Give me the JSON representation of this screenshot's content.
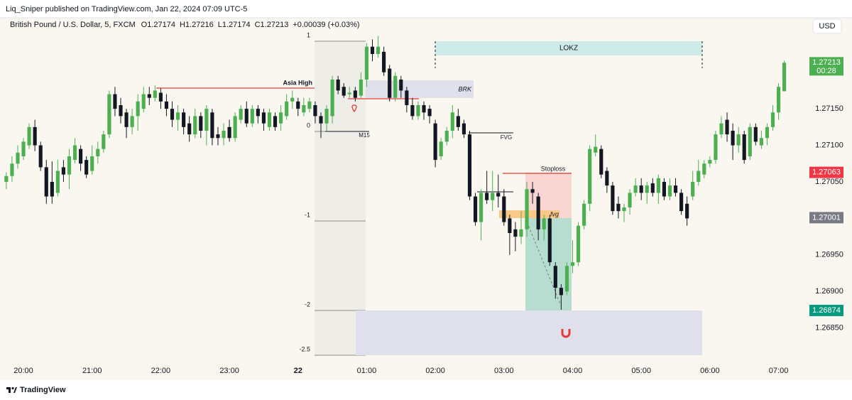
{
  "header": "Liq_Sniper published on TradingView.com, Jan 22, 2024 07:09 UTC-5",
  "footer": "TradingView",
  "chart_data": {
    "type": "candlestick",
    "legend": {
      "symbol": "British Pound / U.S. Dollar, 5, FXCM",
      "items": [
        "O1.27174",
        "H1.27216",
        "L1.27174",
        "C1.27213"
      ],
      "change": "+0.00039 (+0.03%)"
    },
    "currency": "USD",
    "up_color": "#4caf50",
    "down_color": "#131722",
    "open": [
      1.2705,
      1.27058,
      1.27075,
      1.27085,
      1.271,
      1.27125,
      1.271,
      1.2707,
      1.2705,
      1.27035,
      1.2707,
      1.2706,
      1.2708,
      1.27095,
      1.2708,
      1.27065,
      1.27085,
      1.27095,
      1.27115,
      1.2717,
      1.27155,
      1.27145,
      1.27125,
      1.2714,
      1.2715,
      1.2717,
      1.27165,
      1.27172,
      1.2716,
      1.2715,
      1.27135,
      1.27145,
      1.2713,
      1.27115,
      1.2714,
      1.2712,
      1.27145,
      1.27115,
      1.2711,
      1.27125,
      1.2711,
      1.27135,
      1.2715,
      1.2713,
      1.2715,
      1.27145,
      1.27125,
      1.2714,
      1.2713,
      1.2714,
      1.2716,
      1.2716,
      1.27145,
      1.2715,
      1.27155,
      1.2714,
      1.2713,
      1.2714,
      1.2719,
      1.2718,
      1.2717,
      1.27175,
      1.27168,
      1.2719,
      1.27235,
      1.27225,
      1.27228,
      1.27205,
      1.27165,
      1.2719,
      1.27175,
      1.27155,
      1.2714,
      1.27155,
      1.2715,
      1.2713,
      1.27085,
      1.27105,
      1.2712,
      1.2714,
      1.2713,
      1.27115,
      1.2703,
      1.26995,
      1.27035,
      1.27025,
      1.27035,
      1.2703,
      1.27,
      1.26985,
      1.26975,
      1.26985,
      1.2704,
      1.2703,
      1.26985,
      1.27,
      1.26935,
      1.26905,
      1.269,
      1.26935,
      1.2694,
      1.2699,
      1.2702,
      1.2709,
      1.27095,
      1.27065,
      1.27045,
      1.2702,
      1.2701,
      1.27015,
      1.27035,
      1.27045,
      1.27035,
      1.27048,
      1.27035,
      1.2705,
      1.2703,
      1.27045,
      1.27035,
      1.2702,
      1.2703,
      1.2705,
      1.2706,
      1.27075,
      1.2708,
      1.27115,
      1.27135,
      1.2712,
      1.271,
      1.27115,
      1.27085,
      1.27125,
      1.271,
      1.2711,
      1.27125,
      1.27145,
      1.27174
    ],
    "high": [
      1.27063,
      1.27085,
      1.271,
      1.2711,
      1.2713,
      1.27135,
      1.27105,
      1.2708,
      1.27078,
      1.2708,
      1.2708,
      1.27095,
      1.2711,
      1.271,
      1.27085,
      1.271,
      1.27105,
      1.2712,
      1.27175,
      1.2718,
      1.27165,
      1.2715,
      1.2715,
      1.2717,
      1.2718,
      1.2718,
      1.27182,
      1.27178,
      1.2717,
      1.2716,
      1.27155,
      1.2715,
      1.2714,
      1.2715,
      1.27145,
      1.27155,
      1.2715,
      1.27125,
      1.2713,
      1.27135,
      1.27145,
      1.27155,
      1.2716,
      1.27155,
      1.27155,
      1.2715,
      1.2715,
      1.27145,
      1.27155,
      1.2717,
      1.27175,
      1.27165,
      1.27165,
      1.27165,
      1.2716,
      1.27145,
      1.27155,
      1.27195,
      1.27195,
      1.27185,
      1.2718,
      1.2718,
      1.272,
      1.2724,
      1.27245,
      1.2725,
      1.27235,
      1.2721,
      1.272,
      1.27195,
      1.2718,
      1.27165,
      1.2716,
      1.2716,
      1.27155,
      1.27135,
      1.2711,
      1.27125,
      1.27155,
      1.2715,
      1.27135,
      1.2712,
      1.27035,
      1.2704,
      1.27065,
      1.27065,
      1.2706,
      1.2704,
      1.27005,
      1.26995,
      1.2701,
      1.2705,
      1.2705,
      1.27035,
      1.27005,
      1.27005,
      1.2694,
      1.2691,
      1.2694,
      1.2697,
      1.26995,
      1.27025,
      1.271,
      1.27115,
      1.271,
      1.2707,
      1.2705,
      1.2703,
      1.2702,
      1.2704,
      1.27055,
      1.27055,
      1.2705,
      1.27055,
      1.2706,
      1.27055,
      1.27055,
      1.27055,
      1.2704,
      1.2703,
      1.27065,
      1.2708,
      1.2708,
      1.27085,
      1.2712,
      1.2714,
      1.27145,
      1.2713,
      1.27125,
      1.2712,
      1.2713,
      1.2713,
      1.2712,
      1.2713,
      1.27155,
      1.27185,
      1.27216
    ],
    "low": [
      1.2704,
      1.2705,
      1.27068,
      1.2708,
      1.27095,
      1.27092,
      1.27065,
      1.2702,
      1.2702,
      1.2703,
      1.2705,
      1.2704,
      1.27075,
      1.27065,
      1.27055,
      1.2706,
      1.27075,
      1.2709,
      1.2711,
      1.2714,
      1.2713,
      1.2711,
      1.27115,
      1.2712,
      1.27145,
      1.27155,
      1.2716,
      1.2715,
      1.2714,
      1.27125,
      1.2712,
      1.27115,
      1.27105,
      1.2711,
      1.2711,
      1.271,
      1.271,
      1.271,
      1.271,
      1.27105,
      1.27105,
      1.2713,
      1.27125,
      1.27125,
      1.2713,
      1.2712,
      1.2712,
      1.2712,
      1.2712,
      1.27135,
      1.2715,
      1.2714,
      1.2714,
      1.27145,
      1.2713,
      1.2711,
      1.2712,
      1.2713,
      1.2717,
      1.27165,
      1.27165,
      1.2716,
      1.27165,
      1.2718,
      1.27215,
      1.2722,
      1.27195,
      1.2716,
      1.2716,
      1.27165,
      1.27145,
      1.27135,
      1.27135,
      1.27135,
      1.2713,
      1.2707,
      1.2708,
      1.271,
      1.2711,
      1.2712,
      1.2711,
      1.27025,
      1.2699,
      1.2697,
      1.2702,
      1.2701,
      1.27015,
      1.2699,
      1.2695,
      1.26955,
      1.26965,
      1.26975,
      1.2702,
      1.2697,
      1.2697,
      1.26935,
      1.2689,
      1.26875,
      1.26895,
      1.26925,
      1.26935,
      1.26985,
      1.2701,
      1.27085,
      1.27055,
      1.27035,
      1.27005,
      1.27,
      1.26995,
      1.27005,
      1.2703,
      1.27025,
      1.2702,
      1.2703,
      1.2702,
      1.27025,
      1.27025,
      1.2703,
      1.27005,
      1.2699,
      1.27025,
      1.27045,
      1.27055,
      1.2707,
      1.27075,
      1.2711,
      1.27105,
      1.2708,
      1.2709,
      1.27075,
      1.2708,
      1.271,
      1.27095,
      1.271,
      1.2712,
      1.27135,
      1.27174
    ],
    "close": [
      1.27058,
      1.27075,
      1.2709,
      1.27105,
      1.27125,
      1.271,
      1.2707,
      1.2703,
      1.2703,
      1.27065,
      1.2706,
      1.27085,
      1.271,
      1.27075,
      1.2706,
      1.27085,
      1.27095,
      1.27115,
      1.2717,
      1.2715,
      1.2714,
      1.27125,
      1.2714,
      1.2716,
      1.2717,
      1.27165,
      1.27175,
      1.2716,
      1.2715,
      1.27135,
      1.27145,
      1.27125,
      1.27115,
      1.2714,
      1.2712,
      1.2715,
      1.2711,
      1.2711,
      1.2712,
      1.2711,
      1.2714,
      1.2715,
      1.2713,
      1.2715,
      1.2714,
      1.2713,
      1.27145,
      1.27125,
      1.27145,
      1.2716,
      1.27165,
      1.2715,
      1.27155,
      1.2716,
      1.2714,
      1.2713,
      1.2715,
      1.2719,
      1.27175,
      1.27168,
      1.27172,
      1.27165,
      1.2719,
      1.27235,
      1.27225,
      1.27235,
      1.272,
      1.27165,
      1.27195,
      1.27175,
      1.27155,
      1.2714,
      1.27155,
      1.27145,
      1.2714,
      1.2708,
      1.27105,
      1.2712,
      1.27145,
      1.27125,
      1.27115,
      1.2703,
      1.26995,
      1.27035,
      1.27025,
      1.27035,
      1.2703,
      1.26995,
      1.2698,
      1.26975,
      1.26985,
      1.2704,
      1.27035,
      1.26985,
      1.27,
      1.2694,
      1.26905,
      1.26895,
      1.26935,
      1.2694,
      1.2699,
      1.2702,
      1.27095,
      1.27098,
      1.2706,
      1.27045,
      1.2701,
      1.2701,
      1.27015,
      1.27035,
      1.27045,
      1.27035,
      1.27045,
      1.27035,
      1.27055,
      1.2703,
      1.27045,
      1.27035,
      1.2701,
      1.27,
      1.2705,
      1.27065,
      1.27075,
      1.2708,
      1.27115,
      1.2713,
      1.27115,
      1.271,
      1.27115,
      1.2708,
      1.27125,
      1.27105,
      1.2711,
      1.27125,
      1.27145,
      1.2718,
      1.27213
    ],
    "xlim": [
      -1.1,
      139.4
    ],
    "xticks": [
      {
        "value": 3,
        "label": "20:00"
      },
      {
        "value": 15,
        "label": "21:00"
      },
      {
        "value": 27,
        "label": "22:00"
      },
      {
        "value": 39,
        "label": "23:00"
      },
      {
        "value": 51,
        "label": "22"
      },
      {
        "value": 63,
        "label": "01:00"
      },
      {
        "value": 75,
        "label": "02:00"
      },
      {
        "value": 87,
        "label": "03:00"
      },
      {
        "value": 99,
        "label": "04:00"
      },
      {
        "value": 111,
        "label": "05:00"
      },
      {
        "value": 123,
        "label": "06:00"
      },
      {
        "value": 135,
        "label": "07:00"
      }
    ],
    "ylim": [
      1.26803,
      1.2726
    ],
    "yticks": [
      {
        "value": 1.2715,
        "label": "1.27150"
      },
      {
        "value": 1.271,
        "label": "1.27100"
      },
      {
        "value": 1.2705,
        "label": "1.27050"
      },
      {
        "value": 1.2695,
        "label": "1.26950"
      },
      {
        "value": 1.269,
        "label": "1.26900"
      },
      {
        "value": 1.2685,
        "label": "1.26850"
      }
    ],
    "price_tags": [
      {
        "value": 1.27213,
        "label": "1.27213",
        "countdown": "00:28",
        "color": "#4caf50"
      },
      {
        "value": 1.27063,
        "label": "1.27063",
        "color": "#f23645"
      },
      {
        "value": 1.27001,
        "label": "1.27001",
        "color": "#787b86"
      },
      {
        "value": 1.26874,
        "label": "1.26874",
        "color": "#089981"
      }
    ],
    "annotations": {
      "asia_high": "Asia High",
      "session": "LOKZ",
      "break": "BRK",
      "timeframe": "M15",
      "fvg_upper": "FVG",
      "stoploss": "Stoploss",
      "fvg_lower": "fvg",
      "fib_levels": [
        1,
        0,
        -1,
        -2,
        -2.5
      ]
    }
  }
}
